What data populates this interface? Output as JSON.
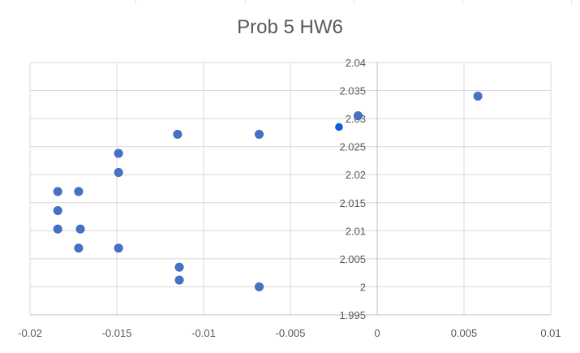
{
  "chart_data": {
    "type": "scatter",
    "title": "Prob 5 HW6",
    "xlabel": "",
    "ylabel": "",
    "xlim": [
      -0.02,
      0.01
    ],
    "ylim": [
      1.995,
      2.04
    ],
    "x_ticks": [
      "-0.02",
      "-0.015",
      "-0.01",
      "-0.005",
      "0",
      "0.005",
      "0.01"
    ],
    "y_ticks": [
      "1.995",
      "2",
      "2.005",
      "2.01",
      "2.015",
      "2.02",
      "2.025",
      "2.03",
      "2.035",
      "2.04"
    ],
    "grid": true,
    "legend": "none",
    "colors": {
      "point": "#4472C4",
      "highlight_point": "#0F5FD9",
      "grid": "#D9D9D9",
      "text": "#595959"
    },
    "series": [
      {
        "points": [
          {
            "x": -0.0184,
            "y": 2.017
          },
          {
            "x": -0.0172,
            "y": 2.017
          },
          {
            "x": -0.0184,
            "y": 2.0136
          },
          {
            "x": -0.0184,
            "y": 2.0103
          },
          {
            "x": -0.0171,
            "y": 2.0103
          },
          {
            "x": -0.0172,
            "y": 2.0069
          },
          {
            "x": -0.0149,
            "y": 2.0238
          },
          {
            "x": -0.0149,
            "y": 2.0204
          },
          {
            "x": -0.0149,
            "y": 2.0069
          },
          {
            "x": -0.0115,
            "y": 2.0272
          },
          {
            "x": -0.0114,
            "y": 2.0035
          },
          {
            "x": -0.0114,
            "y": 2.0012
          },
          {
            "x": -0.0068,
            "y": 2.0272
          },
          {
            "x": -0.0068,
            "y": 2.0
          },
          {
            "x": -0.0011,
            "y": 2.0305
          },
          {
            "x": 0.0058,
            "y": 2.034
          }
        ]
      },
      {
        "highlight": true,
        "points": [
          {
            "x": -0.0022,
            "y": 2.0285
          }
        ]
      }
    ]
  }
}
